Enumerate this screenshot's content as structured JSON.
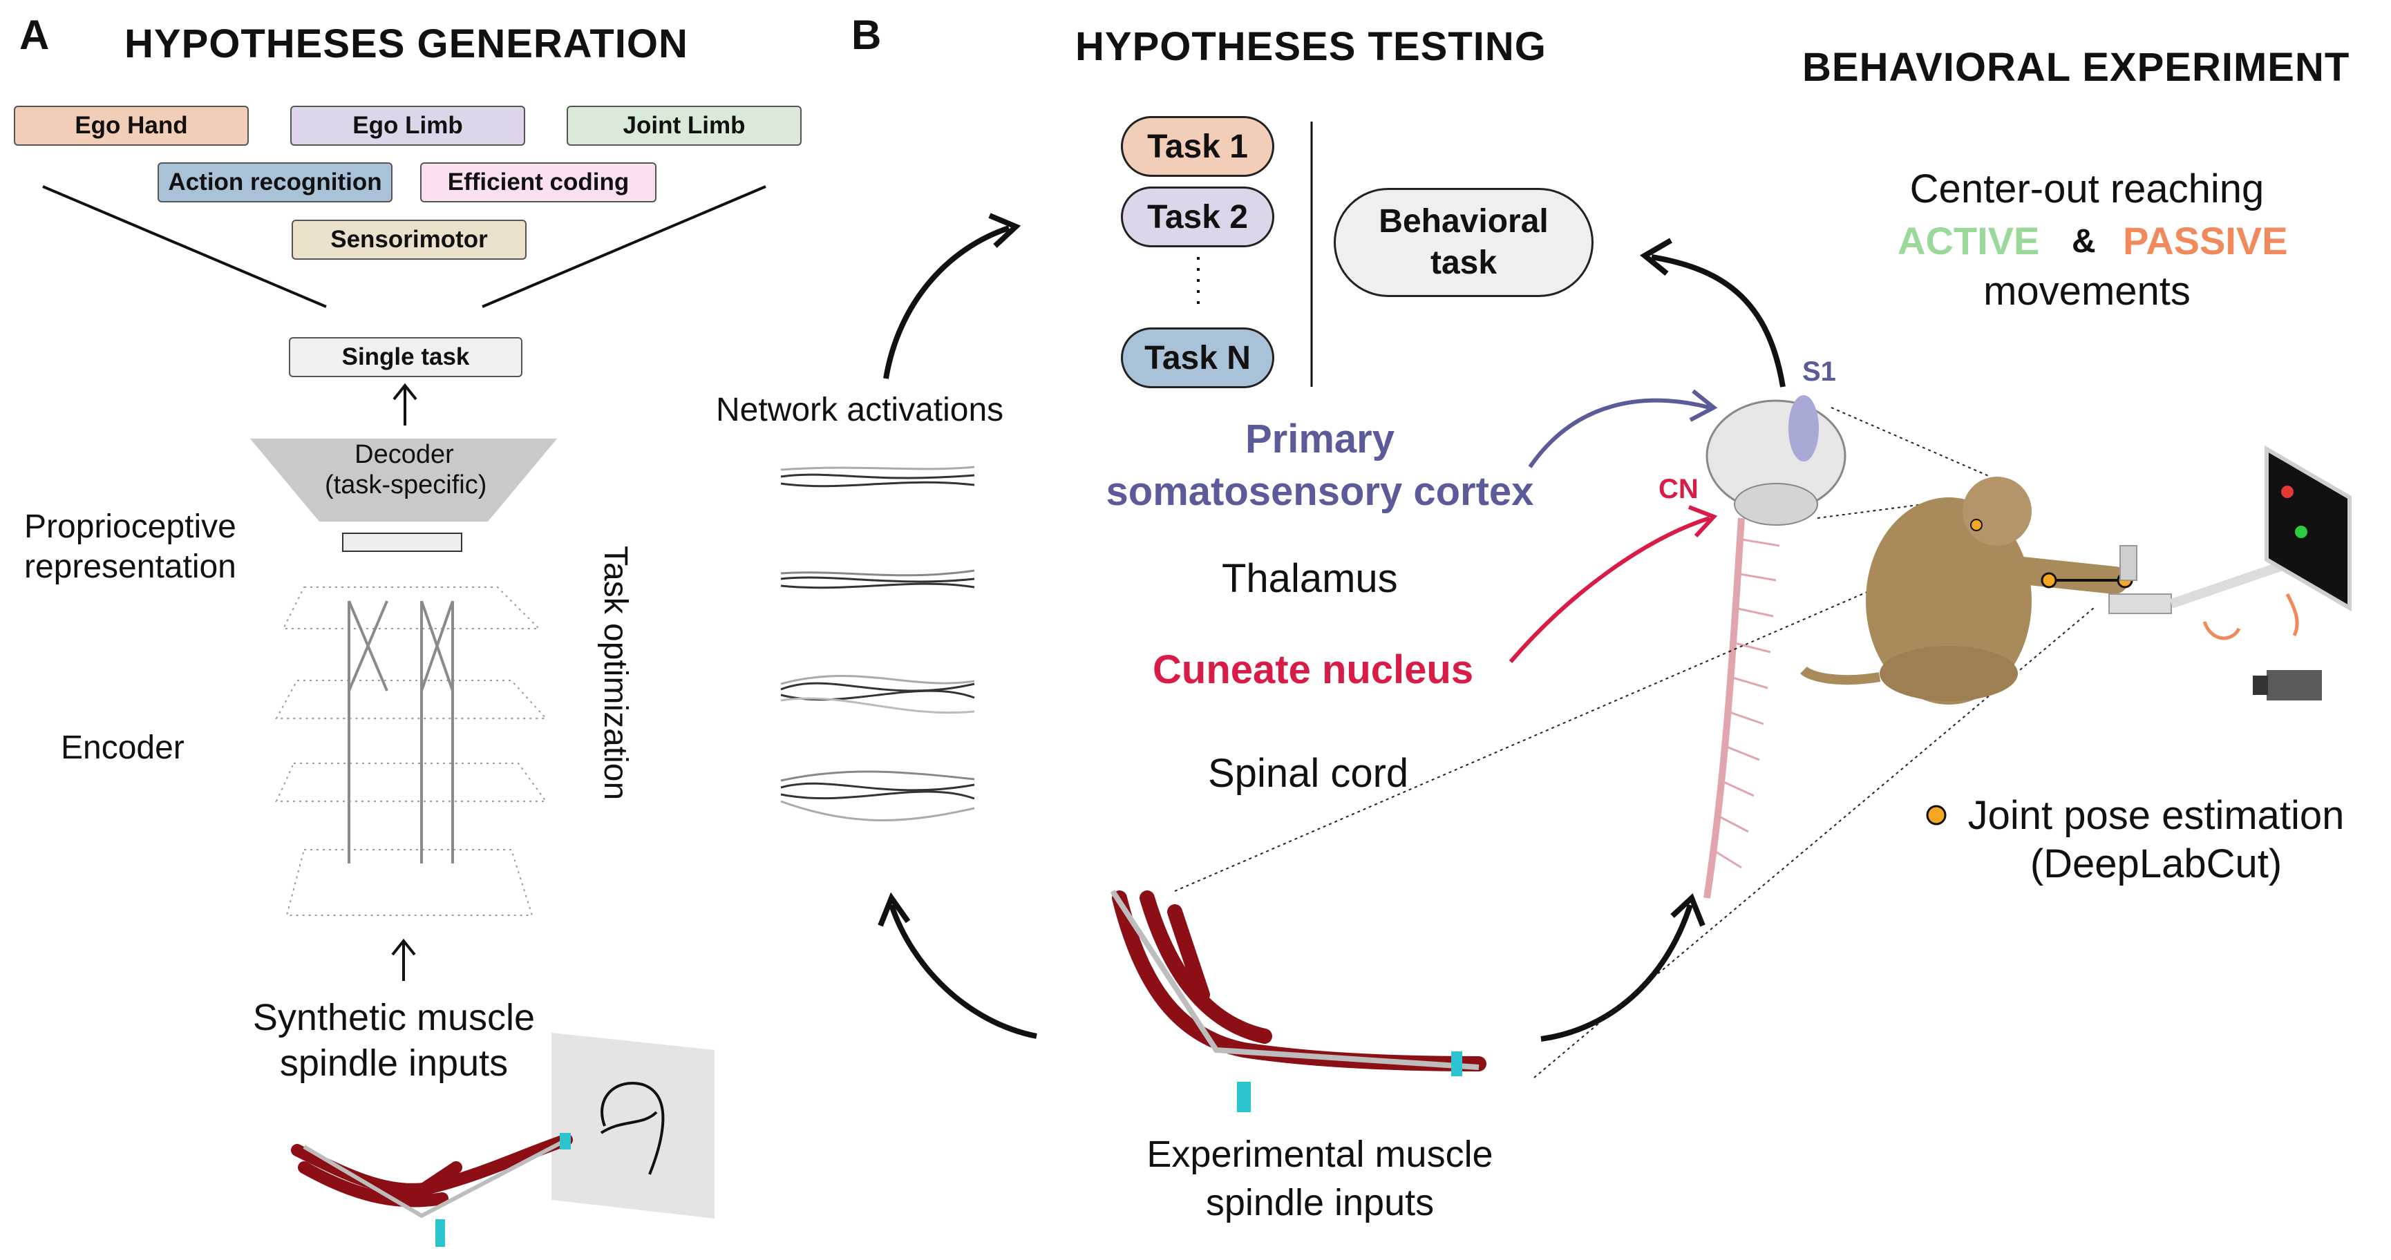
{
  "panel_a": {
    "letter": "A",
    "title": "HYPOTHESES GENERATION",
    "tasks": [
      {
        "label": "Ego Hand",
        "color": "#f2cdb7"
      },
      {
        "label": "Ego Limb",
        "color": "#ded5ea"
      },
      {
        "label": "Joint Limb",
        "color": "#d9ead8"
      },
      {
        "label": "Action recognition",
        "color": "#a9c2d8"
      },
      {
        "label": "Efficient coding",
        "color": "#fbe0f1"
      },
      {
        "label": "Sensorimotor",
        "color": "#ebe1cb"
      }
    ],
    "single_task": "Single task",
    "decoder_line1": "Decoder",
    "decoder_line2": "(task-specific)",
    "proprioceptive_line1": "Proprioceptive",
    "proprioceptive_line2": "representation",
    "encoder": "Encoder",
    "task_optimization": "Task optimization",
    "synthetic_line1": "Synthetic muscle",
    "synthetic_line2": "spindle inputs"
  },
  "panel_b": {
    "letter": "B",
    "title": "HYPOTHESES TESTING",
    "task_pills": [
      {
        "label": "Task 1",
        "color": "#f2cdb7"
      },
      {
        "label": "Task 2",
        "color": "#ded5ea"
      },
      {
        "label": "Task N",
        "color": "#a9c2d8"
      }
    ],
    "behavioral_task_line1": "Behavioral",
    "behavioral_task_line2": "task",
    "behavioral_task_color": "#efefef",
    "network_activations": "Network activations",
    "s1_line1": "Primary",
    "s1_line2": "somatosensory cortex",
    "s1_color": "#5b5b9a",
    "thalamus": "Thalamus",
    "cuneate": "Cuneate nucleus",
    "cuneate_color": "#d81b47",
    "spinal": "Spinal cord",
    "s1_tag": "S1",
    "cn_tag": "CN",
    "experimental_line1": "Experimental muscle",
    "experimental_line2": "spindle inputs"
  },
  "behavior": {
    "title": "BEHAVIORAL EXPERIMENT",
    "line1": "Center-out reaching",
    "active": "ACTIVE",
    "active_color": "#9ad99a",
    "amp": "&",
    "passive": "PASSIVE",
    "passive_color": "#f08a5d",
    "line3": "movements",
    "pose_line1": "Joint pose estimation",
    "pose_line2": "(DeepLabCut)",
    "pose_dot_color": "#f5a623"
  }
}
